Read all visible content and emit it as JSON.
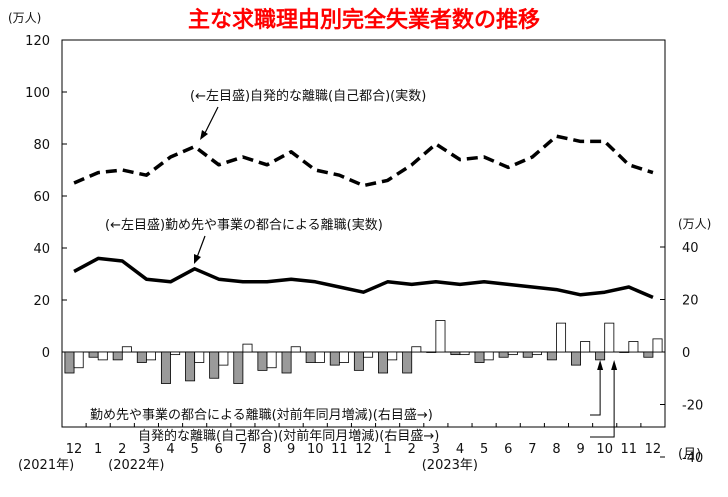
{
  "chart_data": {
    "type": "line",
    "title": "主な求職理由別完全失業者数の推移",
    "title_color": "#ff0000",
    "categories": [
      "12",
      "1",
      "2",
      "3",
      "4",
      "5",
      "6",
      "7",
      "8",
      "9",
      "10",
      "11",
      "12",
      "1",
      "2",
      "3",
      "4",
      "5",
      "6",
      "7",
      "8",
      "9",
      "10",
      "11",
      "12"
    ],
    "month_unit": "(月)",
    "year_labels": [
      {
        "label": "(2021年)",
        "index": 0
      },
      {
        "label": "(2022年)",
        "index": 2
      },
      {
        "label": "(2023年)",
        "index": 15
      }
    ],
    "left_axis": {
      "unit": "(万人)",
      "ylim": [
        0,
        120
      ],
      "ticks": [
        "0",
        "20",
        "40",
        "60",
        "80",
        "100",
        "120"
      ]
    },
    "right_axis": {
      "unit": "(万人)",
      "ylim": [
        -40,
        40
      ],
      "ticks": [
        "-40",
        "-20",
        "0",
        "20",
        "40"
      ]
    },
    "series": [
      {
        "name": "(←左目盛)自発的な離職(自己都合)(実数)",
        "axis": "left",
        "style": "dashed",
        "color": "#000000",
        "values": [
          65,
          69,
          70,
          68,
          75,
          79,
          72,
          75,
          72,
          77,
          70,
          68,
          64,
          66,
          72,
          80,
          74,
          75,
          71,
          75,
          83,
          81,
          81,
          72,
          69
        ]
      },
      {
        "name": "(←左目盛)勤め先や事業の都合による離職(実数)",
        "axis": "left",
        "style": "solid",
        "color": "#000000",
        "values": [
          31,
          36,
          35,
          28,
          27,
          32,
          28,
          27,
          27,
          28,
          27,
          25,
          23,
          27,
          26,
          27,
          26,
          27,
          26,
          25,
          24,
          22,
          23,
          25,
          21
        ]
      },
      {
        "name": "勤め先や事業の都合による離職(対前年同月増減)(右目盛→)",
        "axis": "right",
        "type": "bar",
        "fill": "#9a9a9a",
        "values": [
          -8,
          -2,
          -3,
          -4,
          -12,
          -11,
          -10,
          -12,
          -7,
          -8,
          -4,
          -5,
          -7,
          -8,
          -8,
          0,
          -1,
          -4,
          -2,
          -2,
          -3,
          -5,
          -3,
          0,
          -2
        ]
      },
      {
        "name": "自発的な離職(自己都合)(対前年同月増減)(右目盛→)",
        "axis": "right",
        "type": "bar",
        "fill": "#ffffff",
        "values": [
          -6,
          -3,
          2,
          -3,
          -1,
          -4,
          -5,
          3,
          -6,
          2,
          -4,
          -4,
          -2,
          -3,
          2,
          12,
          -1,
          -3,
          -1,
          -1,
          11,
          4,
          11,
          4,
          5
        ]
      }
    ],
    "annotations": [
      {
        "text": "(←左目盛)自発的な離職(自己都合)(実数)",
        "target_series": 0,
        "target_index": 5
      },
      {
        "text": "(←左目盛)勤め先や事業の都合による離職(実数)",
        "target_series": 1,
        "target_index": 5
      },
      {
        "text": "勤め先や事業の都合による離職(対前年同月増減)(右目盛→)",
        "target_series": 2,
        "target_index": 22
      },
      {
        "text": "自発的な離職(自己都合)(対前年同月増減)(右目盛→)",
        "target_series": 3,
        "target_index": 23
      }
    ],
    "grid": false,
    "legend": "none"
  }
}
